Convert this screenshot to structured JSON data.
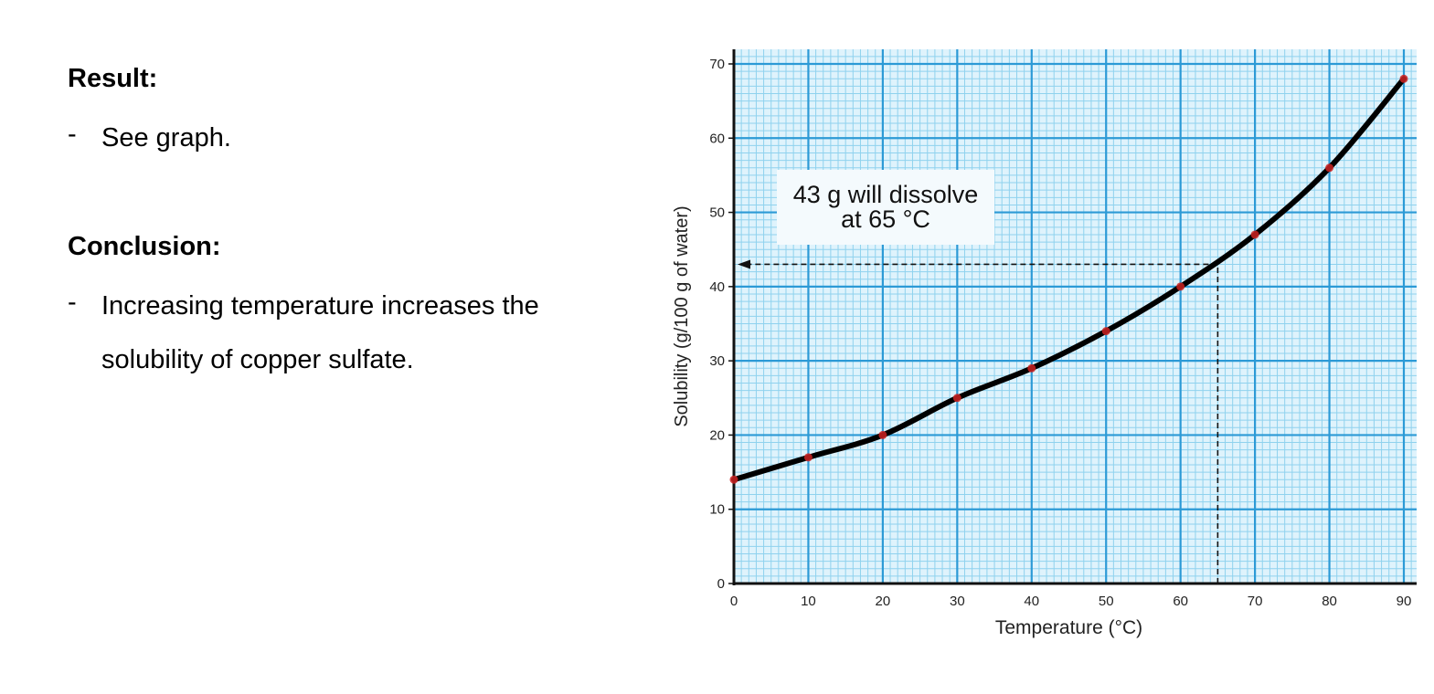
{
  "result": {
    "heading": "Result:",
    "bullet_marker": "-",
    "text": "See graph."
  },
  "conclusion": {
    "heading": "Conclusion:",
    "bullet_marker": "-",
    "lines": [
      "Increasing temperature increases the",
      "solubility of copper sulfate."
    ]
  },
  "chart_data": {
    "type": "line",
    "title": "",
    "xlabel": "Temperature (°C)",
    "ylabel": "Solubility (g/100 g of water)",
    "xlim": [
      0,
      90
    ],
    "ylim": [
      0,
      70
    ],
    "x_ticks": [
      0,
      10,
      20,
      30,
      40,
      50,
      60,
      70,
      80,
      90
    ],
    "y_ticks": [
      0,
      10,
      20,
      30,
      40,
      50,
      60,
      70
    ],
    "grid": true,
    "colors": {
      "grid_major": "#2c9ad6",
      "grid_minor": "#8fd2ee",
      "background": "#dff3fc",
      "curve": "#000000",
      "points": "#cc2222"
    },
    "series": [
      {
        "x": [
          0,
          10,
          20,
          30,
          40,
          50,
          60,
          70,
          80,
          90
        ],
        "y": [
          14,
          17,
          20,
          25,
          29,
          34,
          40,
          47,
          56,
          68
        ]
      }
    ],
    "annotation": {
      "lines": [
        "43 g will dissolve",
        "at 65 °C"
      ],
      "x": 65,
      "y": 43
    }
  }
}
